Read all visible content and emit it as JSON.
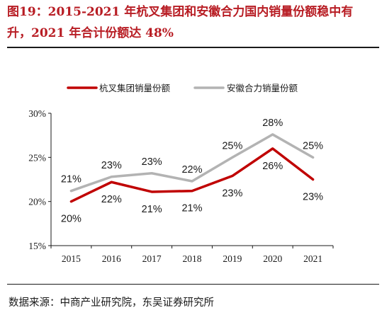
{
  "header": {
    "title": "图19：2015-2021 年杭叉集团和安徽合力国内销量份额稳中有升，2021 年合计份额达 48%"
  },
  "footer": {
    "source": "数据来源：中商产业研究院，东吴证券研究所"
  },
  "chart_data": {
    "type": "line",
    "x": [
      "2015",
      "2016",
      "2017",
      "2018",
      "2019",
      "2020",
      "2021"
    ],
    "ylim": [
      15,
      30
    ],
    "yticks": [
      "15%",
      "20%",
      "25%",
      "30%"
    ],
    "grid": false,
    "legend_position": "top-center",
    "series": [
      {
        "name": "杭叉集团销量份额",
        "color": "#c00000",
        "values": [
          20,
          22.2,
          21.1,
          21.2,
          22.9,
          26.0,
          22.5
        ],
        "labels": [
          "20%",
          "22%",
          "21%",
          "21%",
          "23%",
          "26%",
          "23%"
        ]
      },
      {
        "name": "安徽合力销量份额",
        "color": "#b3b3b3",
        "values": [
          21.2,
          22.8,
          23.2,
          22.3,
          25.0,
          27.6,
          25.0
        ],
        "labels": [
          "21%",
          "23%",
          "23%",
          "22%",
          "25%",
          "28%",
          "25%"
        ]
      }
    ]
  }
}
